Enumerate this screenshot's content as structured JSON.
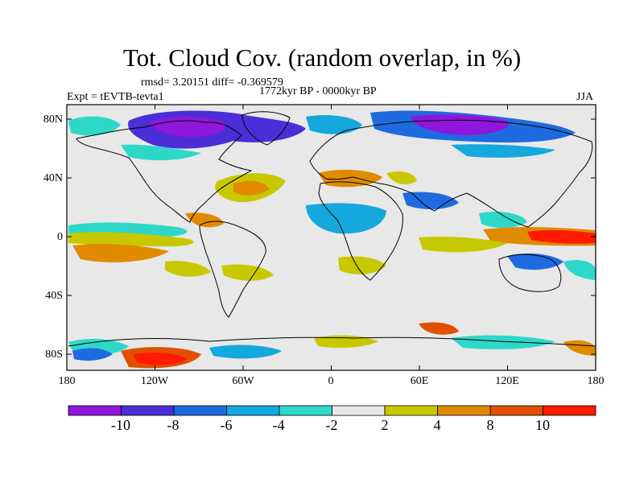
{
  "title": "Tot. Cloud Cov. (random overlap, in %)",
  "stats": "rmsd= 3.20151 diff= -0.369579",
  "period": "1772kyr BP - 0000kyr BP",
  "experiment": "Expt = tEVTB-tevta1",
  "season": "JJA",
  "lat_labels": [
    "80N",
    "40N",
    "0",
    "40S",
    "80S"
  ],
  "lon_labels": [
    "180",
    "120W",
    "60W",
    "0",
    "60E",
    "120E",
    "180"
  ],
  "colorbar": {
    "labels": [
      "-10",
      "-8",
      "-6",
      "-4",
      "-2",
      "2",
      "4",
      "8",
      "10"
    ],
    "colors": [
      "#8f16dc",
      "#4b2ed8",
      "#1e6be0",
      "#15a8dc",
      "#2ed8c8",
      "#e8e8e8",
      "#c8c800",
      "#e08a00",
      "#e05000",
      "#ff1a00"
    ]
  },
  "map": {
    "background_color": "#e8e8e8",
    "coastline_color": "#000000"
  }
}
